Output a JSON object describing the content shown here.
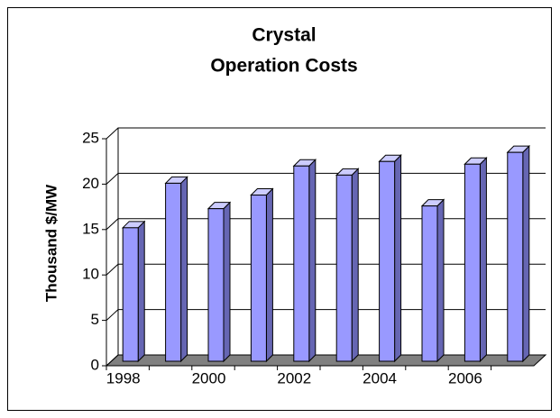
{
  "chart_data": {
    "type": "bar3d",
    "title": [
      "Crystal",
      "Operation Costs"
    ],
    "y_label": "Thousand $/MW",
    "categories": [
      "1998",
      null,
      "2000",
      null,
      "2002",
      null,
      "2004",
      null,
      "2006",
      null
    ],
    "values": [
      14.7,
      19.6,
      16.8,
      18.3,
      21.5,
      20.5,
      22.0,
      17.1,
      21.7,
      23.0
    ],
    "color": "#9999ff",
    "ylim": [
      0,
      25
    ],
    "yticks": [
      0,
      5,
      10,
      15,
      20,
      25
    ],
    "grid": true
  }
}
